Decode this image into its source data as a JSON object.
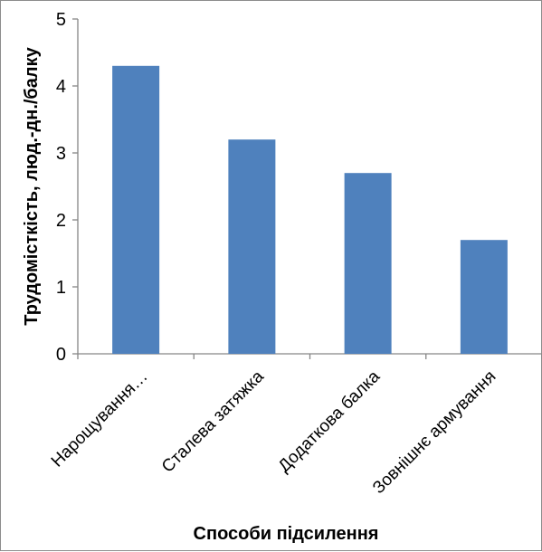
{
  "chart_data": {
    "type": "bar",
    "categories": [
      "Нарощування…",
      "Сталева затяжка",
      "Додаткова балка",
      "Зовнішнє армування"
    ],
    "values": [
      4.3,
      3.2,
      2.7,
      1.7
    ],
    "title": "",
    "xlabel": "Способи підсилення",
    "ylabel": "Трудомісткість, люд.-дн./балку",
    "ylim": [
      0,
      5
    ],
    "yticks": [
      0,
      1,
      2,
      3,
      4,
      5
    ],
    "grid": false,
    "legend": "none",
    "bar_color": "#4f81bd"
  }
}
